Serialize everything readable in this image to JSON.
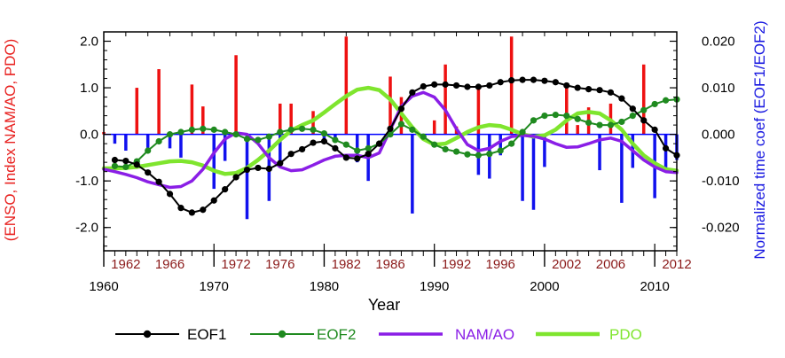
{
  "chart_data": {
    "type": "line",
    "xlabel": "Year",
    "ylabel_left": "(ENSO, Index NAM/AO, PDO)",
    "ylabel_right": "Normalized time coef (EOF1/EOF2)",
    "xlim": [
      1960,
      2012
    ],
    "ylim_left": [
      -2.5,
      2.2
    ],
    "ylim_right": [
      -0.025,
      0.022
    ],
    "x_ticks_major": [
      1960,
      1970,
      1980,
      1990,
      2000,
      2010
    ],
    "x_ticks_top": [
      1962,
      1966,
      1972,
      1976,
      1982,
      1986,
      1992,
      1996,
      2002,
      2006,
      2012
    ],
    "y_ticks_left": [
      "2.0",
      "1.0",
      "0.0",
      "-1.0",
      "-2.0"
    ],
    "y_ticks_right": [
      "0.020",
      "0.010",
      "0.000",
      "-0.010",
      "-0.020"
    ],
    "grid": false,
    "legend": {
      "placement": "bottom",
      "entries": [
        "EOF1",
        "EOF2",
        "NAM/AO",
        "PDO"
      ]
    },
    "bars_red": {
      "x": [
        1960,
        1963,
        1965,
        1968,
        1969,
        1972,
        1976,
        1977,
        1979,
        1982,
        1986,
        1987,
        1990,
        1991,
        1992,
        1994,
        1997,
        2002,
        2003,
        2004,
        2006,
        2009
      ],
      "values": [
        0.05,
        1.0,
        1.4,
        1.07,
        0.6,
        1.7,
        0.66,
        0.66,
        0.5,
        2.1,
        1.24,
        0.8,
        0.3,
        1.5,
        0.17,
        1.0,
        2.1,
        1.0,
        0.2,
        0.58,
        0.66,
        1.5
      ]
    },
    "bars_blue": {
      "x": [
        1961,
        1962,
        1964,
        1966,
        1967,
        1970,
        1971,
        1973,
        1975,
        1976,
        1980,
        1981,
        1983,
        1984,
        1988,
        1994,
        1995,
        1996,
        1998,
        1999,
        2000,
        2005,
        2007,
        2008,
        2010,
        2011,
        2012
      ],
      "values": [
        -0.2,
        -0.35,
        -0.3,
        -0.3,
        -0.5,
        -1.17,
        -0.57,
        -1.82,
        -1.43,
        -0.62,
        -0.1,
        -0.12,
        -0.6,
        -1.0,
        -1.7,
        -0.87,
        -0.95,
        -0.45,
        -1.43,
        -1.62,
        -0.7,
        -0.77,
        -1.47,
        -0.72,
        -1.37,
        -0.82,
        -0.55
      ]
    },
    "x": [
      1960,
      1961,
      1962,
      1963,
      1964,
      1965,
      1966,
      1967,
      1968,
      1969,
      1970,
      1971,
      1972,
      1973,
      1974,
      1975,
      1976,
      1977,
      1978,
      1979,
      1980,
      1981,
      1982,
      1983,
      1984,
      1985,
      1986,
      1987,
      1988,
      1989,
      1990,
      1991,
      1992,
      1993,
      1994,
      1995,
      1996,
      1997,
      1998,
      1999,
      2000,
      2001,
      2002,
      2003,
      2004,
      2005,
      2006,
      2007,
      2008,
      2009,
      2010,
      2011,
      2012
    ],
    "series": [
      {
        "name": "EOF1",
        "color": "#000000",
        "values": [
          null,
          -0.55,
          -0.57,
          -0.65,
          -0.82,
          -1.02,
          -1.28,
          -1.58,
          -1.68,
          -1.62,
          -1.42,
          -1.18,
          -0.92,
          -0.76,
          -0.72,
          -0.74,
          -0.62,
          -0.42,
          -0.32,
          -0.18,
          -0.15,
          -0.3,
          -0.5,
          -0.52,
          -0.42,
          -0.2,
          0.12,
          0.55,
          0.9,
          1.03,
          1.07,
          1.07,
          1.05,
          1.02,
          1.02,
          1.05,
          1.12,
          1.16,
          1.17,
          1.17,
          1.15,
          1.12,
          1.05,
          1.0,
          0.97,
          0.95,
          0.9,
          0.77,
          0.55,
          0.3,
          0.1,
          -0.3,
          -0.45
        ]
      },
      {
        "name": "EOF2",
        "color": "#1f8a1f",
        "values": [
          null,
          -0.68,
          -0.7,
          -0.58,
          -0.35,
          -0.15,
          0.0,
          0.05,
          0.1,
          0.12,
          0.1,
          0.05,
          0.0,
          -0.1,
          -0.12,
          -0.05,
          0.05,
          0.1,
          0.12,
          0.1,
          0.02,
          -0.12,
          -0.22,
          -0.35,
          -0.3,
          -0.2,
          0.0,
          0.22,
          0.1,
          -0.05,
          -0.22,
          -0.32,
          -0.37,
          -0.43,
          -0.45,
          -0.42,
          -0.35,
          -0.2,
          0.05,
          0.3,
          0.4,
          0.42,
          0.4,
          0.33,
          0.25,
          0.2,
          0.2,
          0.27,
          0.4,
          0.52,
          0.65,
          0.73,
          0.75
        ]
      },
      {
        "name": "NAM/AO",
        "color": "#8a1ee6",
        "values": [
          -0.75,
          -0.8,
          -0.86,
          -0.93,
          -1.02,
          -1.08,
          -1.14,
          -1.12,
          -1.0,
          -0.75,
          -0.4,
          -0.1,
          0.03,
          0.0,
          -0.2,
          -0.5,
          -0.7,
          -0.78,
          -0.76,
          -0.66,
          -0.55,
          -0.47,
          -0.45,
          -0.45,
          -0.5,
          -0.4,
          0.1,
          0.6,
          0.82,
          0.9,
          0.8,
          0.52,
          0.12,
          -0.22,
          -0.35,
          -0.3,
          -0.15,
          -0.05,
          -0.02,
          -0.04,
          -0.1,
          -0.2,
          -0.28,
          -0.27,
          -0.2,
          -0.12,
          -0.08,
          -0.15,
          -0.35,
          -0.55,
          -0.7,
          -0.8,
          -0.82
        ]
      },
      {
        "name": "PDO",
        "color": "#7fe52e",
        "values": [
          -0.73,
          -0.73,
          -0.72,
          -0.7,
          -0.66,
          -0.62,
          -0.58,
          -0.57,
          -0.6,
          -0.67,
          -0.78,
          -0.85,
          -0.83,
          -0.72,
          -0.55,
          -0.35,
          -0.12,
          0.08,
          0.2,
          0.3,
          0.47,
          0.65,
          0.82,
          0.96,
          1.0,
          0.95,
          0.75,
          0.45,
          0.15,
          -0.1,
          -0.22,
          -0.2,
          -0.08,
          0.05,
          0.15,
          0.2,
          0.18,
          0.1,
          0.0,
          -0.05,
          -0.02,
          0.1,
          0.3,
          0.45,
          0.48,
          0.45,
          0.3,
          0.1,
          -0.2,
          -0.45,
          -0.62,
          -0.75,
          -0.78
        ]
      }
    ]
  }
}
